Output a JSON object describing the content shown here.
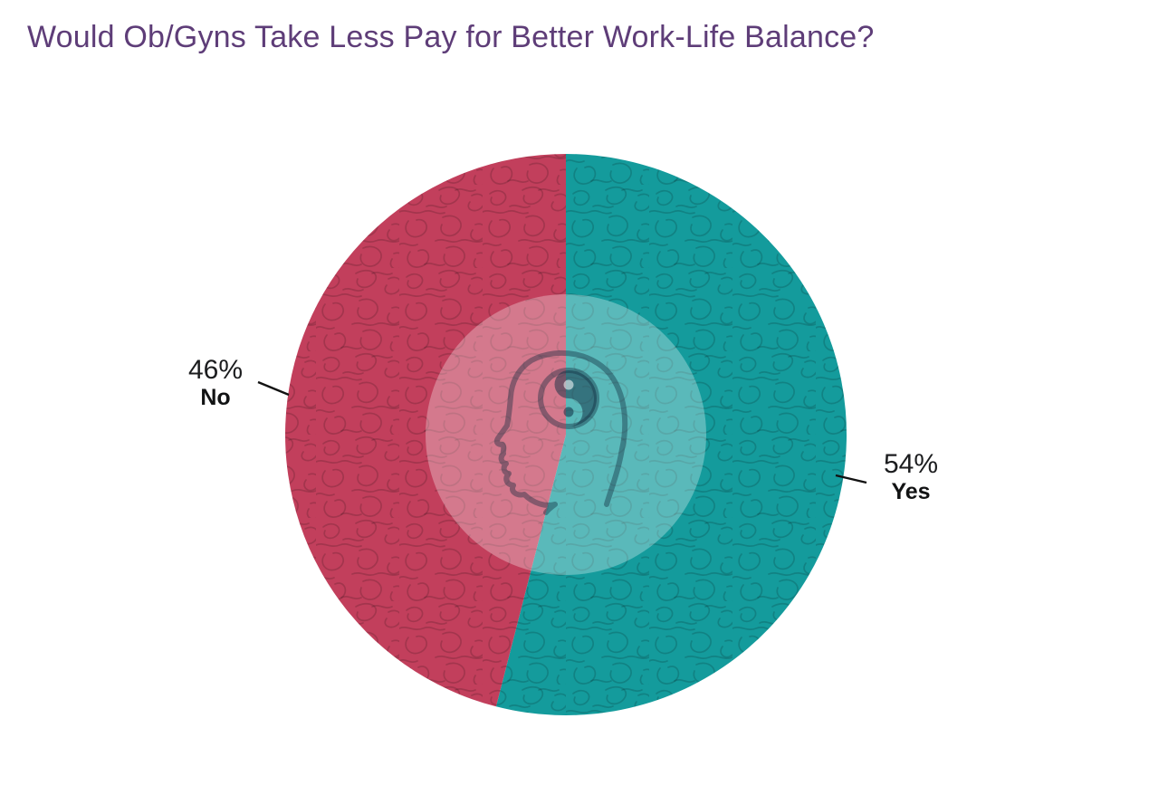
{
  "title": "Would Ob/Gyns Take Less Pay for Better Work-Life Balance?",
  "chart_data": {
    "type": "pie",
    "title": "Would Ob/Gyns Take Less Pay for Better Work-Life Balance?",
    "start_angle_deg": 0,
    "direction": "clockwise",
    "legend_position": "none",
    "center_icon": "head-with-yin-yang",
    "slices": [
      {
        "label": "Yes",
        "value": 54,
        "display": "54%",
        "color": "#149b9c"
      },
      {
        "label": "No",
        "value": 46,
        "display": "46%",
        "color": "#c23f5c"
      }
    ]
  },
  "labels": {
    "no": {
      "percent": "46%",
      "name": "No"
    },
    "yes": {
      "percent": "54%",
      "name": "Yes"
    }
  },
  "colors": {
    "background": "#ffffff",
    "title_text": "#5e3d78",
    "label_text": "#17181a",
    "yes_slice": "#149b9c",
    "no_slice": "#c23f5c",
    "leader_line": "#121212",
    "center_overlay": "rgba(255,255,255,0.30)"
  }
}
